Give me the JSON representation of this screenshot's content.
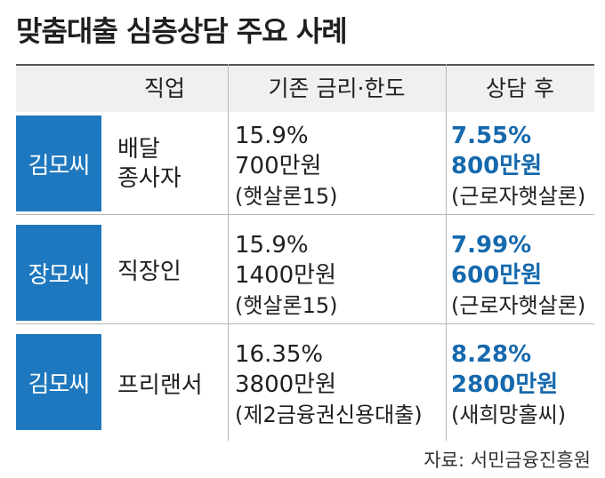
{
  "title": "맞춤대출 심층상담 주요 사례",
  "headers": {
    "job": "직업",
    "before": "기존 금리·한도",
    "after": "상담 후"
  },
  "rows": [
    {
      "name": "김모씨",
      "job_line1": "배달",
      "job_line2": "종사자",
      "before_rate": "15.9%",
      "before_limit": "700만원",
      "before_product": "(햇살론15)",
      "after_rate": "7.55%",
      "after_limit": "800만원",
      "after_product": "(근로자햇살론)"
    },
    {
      "name": "장모씨",
      "job_line1": "직장인",
      "before_rate": "15.9%",
      "before_limit": "1400만원",
      "before_product": "(햇살론15)",
      "after_rate": "7.99%",
      "after_limit": "600만원",
      "after_product": "(근로자햇살론)"
    },
    {
      "name": "김모씨",
      "job_line1": "프리랜서",
      "before_rate": "16.35%",
      "before_limit": "3800만원",
      "before_product": "(제2금융권신용대출)",
      "after_rate": "8.28%",
      "after_limit": "2800만원",
      "after_product": "(새희망홀씨)"
    }
  ],
  "source": "자료: 서민금융진흥원",
  "colors": {
    "badge": "#1e78bf",
    "highlight_text": "#1669ad",
    "header_bg": "#f0f0f0"
  }
}
